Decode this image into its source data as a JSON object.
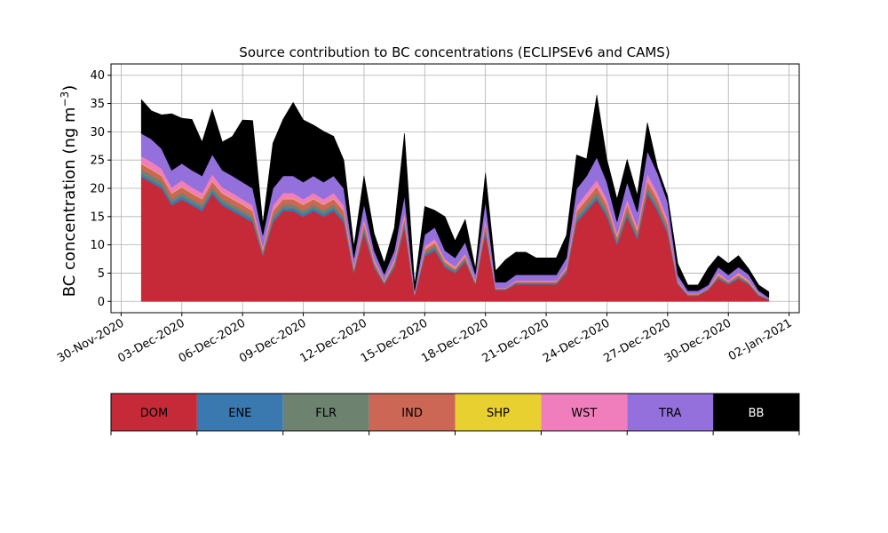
{
  "chart_data": {
    "type": "area",
    "stacked": true,
    "title": "Source contribution to BC concentrations (ECLIPSEv6 and CAMS)",
    "ylabel": "BC concentration (ng m",
    "ylabel_superscript": "−3",
    "ylabel_close": ")",
    "xlabel": "",
    "grid": true,
    "ylim": [
      -2,
      42
    ],
    "xlim": [
      "2020-11-29T12:00",
      "2021-01-02T12:00"
    ],
    "yticks": [
      "0",
      "5",
      "10",
      "15",
      "20",
      "25",
      "30",
      "35",
      "40"
    ],
    "xtick_labels": [
      "30-Nov-2020",
      "03-Dec-2020",
      "06-Dec-2020",
      "09-Dec-2020",
      "12-Dec-2020",
      "15-Dec-2020",
      "18-Dec-2020",
      "21-Dec-2020",
      "24-Dec-2020",
      "27-Dec-2020",
      "30-Dec-2020",
      "02-Jan-2021"
    ],
    "x": [
      "2020-12-01T00:00",
      "2020-12-01T12:00",
      "2020-12-02T00:00",
      "2020-12-02T12:00",
      "2020-12-03T00:00",
      "2020-12-03T12:00",
      "2020-12-04T00:00",
      "2020-12-04T12:00",
      "2020-12-05T00:00",
      "2020-12-05T12:00",
      "2020-12-06T00:00",
      "2020-12-06T12:00",
      "2020-12-07T00:00",
      "2020-12-07T12:00",
      "2020-12-08T00:00",
      "2020-12-08T12:00",
      "2020-12-09T00:00",
      "2020-12-09T12:00",
      "2020-12-10T00:00",
      "2020-12-10T12:00",
      "2020-12-11T00:00",
      "2020-12-11T12:00",
      "2020-12-12T00:00",
      "2020-12-12T12:00",
      "2020-12-13T00:00",
      "2020-12-13T12:00",
      "2020-12-14T00:00",
      "2020-12-14T12:00",
      "2020-12-15T00:00",
      "2020-12-15T12:00",
      "2020-12-16T00:00",
      "2020-12-16T12:00",
      "2020-12-17T00:00",
      "2020-12-17T12:00",
      "2020-12-18T00:00",
      "2020-12-18T12:00",
      "2020-12-19T00:00",
      "2020-12-19T12:00",
      "2020-12-20T00:00",
      "2020-12-20T12:00",
      "2020-12-21T00:00",
      "2020-12-21T12:00",
      "2020-12-22T00:00",
      "2020-12-22T12:00",
      "2020-12-23T00:00",
      "2020-12-23T12:00",
      "2020-12-24T00:00",
      "2020-12-24T12:00",
      "2020-12-25T00:00",
      "2020-12-25T12:00",
      "2020-12-26T00:00",
      "2020-12-26T12:00",
      "2020-12-27T00:00",
      "2020-12-27T12:00",
      "2020-12-28T00:00",
      "2020-12-28T12:00",
      "2020-12-29T00:00",
      "2020-12-29T12:00",
      "2020-12-30T00:00",
      "2020-12-30T12:00",
      "2020-12-31T00:00",
      "2020-12-31T12:00",
      "2021-01-01T00:00"
    ],
    "series": [
      {
        "name": "DOM",
        "color": "#c62a38",
        "values": [
          22,
          21,
          20,
          17,
          18,
          17,
          16,
          19,
          17,
          16,
          15,
          14,
          8,
          14,
          16,
          16,
          15,
          16,
          15,
          16,
          14,
          5,
          12,
          6,
          3,
          6,
          13,
          1,
          8,
          9,
          6,
          5,
          7,
          3,
          12,
          2,
          2,
          3,
          3,
          3,
          3,
          3,
          5,
          14,
          16,
          18,
          15,
          10,
          15,
          11,
          19,
          16,
          12,
          3,
          1,
          1,
          2,
          4,
          3,
          4,
          3,
          1,
          0.3
        ]
      },
      {
        "name": "ENE",
        "color": "#3a78b0",
        "values": [
          0.5,
          0.5,
          0.5,
          0.5,
          0.5,
          0.5,
          0.5,
          0.5,
          0.5,
          0.5,
          0.5,
          0.5,
          0.3,
          0.5,
          0.5,
          0.5,
          0.5,
          0.5,
          0.5,
          0.5,
          0.5,
          0.3,
          0.5,
          0.3,
          0.2,
          0.3,
          0.5,
          0.1,
          0.4,
          0.4,
          0.3,
          0.3,
          0.3,
          0.2,
          0.5,
          0.1,
          0.1,
          0.2,
          0.2,
          0.2,
          0.2,
          0.2,
          0.3,
          0.5,
          0.5,
          0.5,
          0.5,
          0.4,
          0.5,
          0.4,
          0.5,
          0.5,
          0.4,
          0.2,
          0.1,
          0.1,
          0.1,
          0.2,
          0.2,
          0.2,
          0.2,
          0.1,
          0.1
        ]
      },
      {
        "name": "FLR",
        "color": "#6e8270",
        "values": [
          0.8,
          0.8,
          0.7,
          0.6,
          0.7,
          0.6,
          0.6,
          0.7,
          0.6,
          0.6,
          0.6,
          0.5,
          0.3,
          0.5,
          0.6,
          0.6,
          0.6,
          0.6,
          0.6,
          0.6,
          0.5,
          0.2,
          0.5,
          0.3,
          0.1,
          0.3,
          0.5,
          0.1,
          0.3,
          0.4,
          0.3,
          0.2,
          0.3,
          0.1,
          0.5,
          0.1,
          0.1,
          0.1,
          0.1,
          0.1,
          0.1,
          0.1,
          0.2,
          0.5,
          0.6,
          0.7,
          0.6,
          0.4,
          0.6,
          0.4,
          0.7,
          0.6,
          0.5,
          0.1,
          0.1,
          0.1,
          0.1,
          0.2,
          0.1,
          0.2,
          0.1,
          0.1,
          0
        ]
      },
      {
        "name": "IND",
        "color": "#cc6655",
        "values": [
          1,
          1,
          1,
          1,
          1,
          1,
          1,
          1,
          1,
          1,
          1,
          1,
          0.5,
          1,
          1,
          1,
          1,
          1,
          1,
          1,
          1,
          0.3,
          0.8,
          0.4,
          0.2,
          0.4,
          0.8,
          0.1,
          0.5,
          0.6,
          0.4,
          0.3,
          0.4,
          0.2,
          0.8,
          0.1,
          0.1,
          0.2,
          0.2,
          0.2,
          0.2,
          0.2,
          0.3,
          0.9,
          1,
          1.1,
          1,
          0.6,
          1,
          0.7,
          1.1,
          1,
          0.8,
          0.2,
          0.1,
          0.1,
          0.1,
          0.3,
          0.2,
          0.3,
          0.2,
          0.1,
          0
        ]
      },
      {
        "name": "SHP",
        "color": "#e8d030",
        "values": [
          0.1,
          0.1,
          0.1,
          0.1,
          0.1,
          0.1,
          0.1,
          0.1,
          0.1,
          0.1,
          0.1,
          0.1,
          0.1,
          0.1,
          0.1,
          0.1,
          0.1,
          0.1,
          0.1,
          0.1,
          0.1,
          0.1,
          0.1,
          0.1,
          0.1,
          0.1,
          0.1,
          0,
          0.1,
          0.1,
          0.1,
          0.1,
          0.1,
          0.1,
          0.1,
          0,
          0,
          0,
          0,
          0,
          0,
          0,
          0.1,
          0.1,
          0.1,
          0.1,
          0.1,
          0.1,
          0.1,
          0.1,
          0.1,
          0.1,
          0.1,
          0,
          0,
          0,
          0,
          0.1,
          0,
          0.1,
          0.1,
          0,
          0
        ]
      },
      {
        "name": "WST",
        "color": "#f07ebc",
        "values": [
          1.3,
          1.3,
          1.2,
          1,
          1.1,
          1,
          1,
          1.2,
          1,
          1,
          0.9,
          0.9,
          0.5,
          0.9,
          1,
          1,
          0.9,
          1,
          0.9,
          1,
          0.9,
          0.3,
          0.8,
          0.4,
          0.2,
          0.4,
          0.8,
          0.1,
          0.5,
          0.6,
          0.4,
          0.3,
          0.4,
          0.2,
          0.8,
          0.1,
          0.1,
          0.2,
          0.2,
          0.2,
          0.2,
          0.2,
          0.3,
          0.9,
          1,
          1.1,
          0.9,
          0.6,
          0.9,
          0.7,
          1.2,
          1,
          0.8,
          0.2,
          0.1,
          0.1,
          0.1,
          0.3,
          0.2,
          0.3,
          0.2,
          0.1,
          0
        ]
      },
      {
        "name": "TRA",
        "color": "#9370db",
        "values": [
          4,
          4,
          3.5,
          3,
          3,
          3,
          3,
          3.5,
          3,
          3,
          3,
          3,
          2,
          3,
          3,
          3,
          3,
          3,
          3,
          3,
          3,
          1.5,
          2.5,
          1.5,
          1,
          1.5,
          3,
          0.5,
          2,
          2,
          1.5,
          1.5,
          2,
          1,
          3,
          1,
          1,
          1,
          1,
          1,
          1,
          1,
          1.5,
          3,
          3,
          4,
          3,
          2,
          3,
          2.5,
          4,
          3.5,
          3,
          1,
          0.5,
          0.5,
          0.5,
          1,
          1,
          1,
          1,
          0.5,
          0.3
        ]
      },
      {
        "name": "BB",
        "color": "#000000",
        "values": [
          6,
          5,
          6,
          10,
          8,
          9,
          6,
          8,
          5,
          7,
          11,
          12,
          2,
          8,
          10,
          13,
          11,
          9,
          9,
          7,
          5,
          2,
          5,
          3,
          2,
          4,
          11,
          1,
          5,
          3,
          6,
          3,
          4,
          1,
          5,
          2,
          4,
          4,
          4,
          3,
          3,
          3,
          4,
          6,
          3,
          11,
          4,
          4,
          4,
          3,
          5,
          1,
          1,
          2,
          1,
          1,
          3,
          2,
          2,
          2,
          1,
          1,
          1
        ]
      }
    ]
  }
}
